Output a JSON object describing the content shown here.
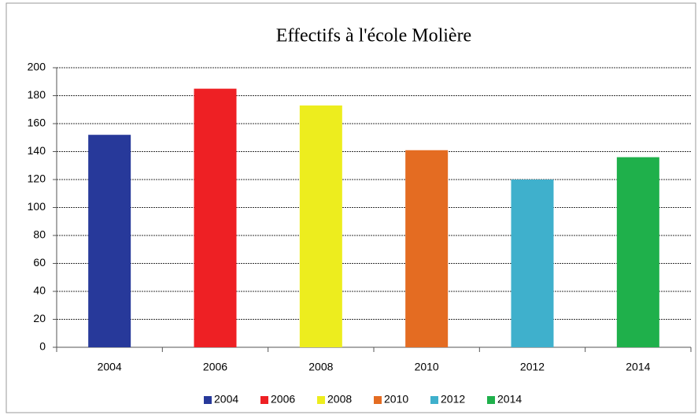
{
  "chart_data": {
    "type": "bar",
    "title": "Effectifs à l'école Molière",
    "categories": [
      "2004",
      "2006",
      "2008",
      "2010",
      "2012",
      "2014"
    ],
    "values": [
      152,
      185,
      173,
      141,
      120,
      136
    ],
    "colors": [
      "#27399a",
      "#ee2024",
      "#eded1e",
      "#e46c22",
      "#3fb0cc",
      "#1fb04b"
    ],
    "ylim": [
      0,
      200
    ],
    "yticks": [
      0,
      20,
      40,
      60,
      80,
      100,
      120,
      140,
      160,
      180,
      200
    ],
    "grid": true,
    "legend": "bottom"
  }
}
